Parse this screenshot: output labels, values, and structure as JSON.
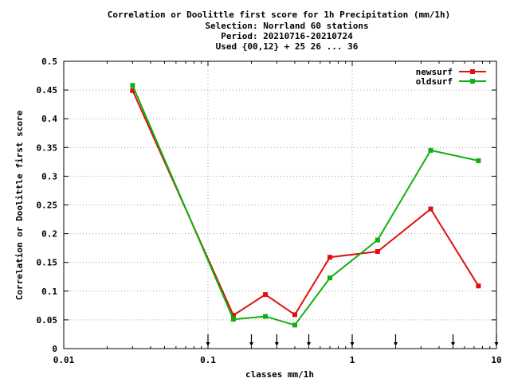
{
  "chart_data": {
    "type": "line",
    "title_lines": [
      "Correlation or Doolittle first score  for 1h Precipitation (mm/1h)",
      "Selection: Norrland     60 stations",
      "Period: 20210716-20210724",
      "Used {00,12} + 25 26 ... 36"
    ],
    "xlabel": "classes mm/1h",
    "ylabel": "Correlation or Doolittle first score",
    "x_scale": "log",
    "xlim": [
      0.01,
      10
    ],
    "ylim": [
      0,
      0.5
    ],
    "x_ticks": [
      0.01,
      0.1,
      1,
      10
    ],
    "x_tick_labels": [
      "0.01",
      "0.1",
      "1",
      "10"
    ],
    "y_ticks": [
      0,
      0.05,
      0.1,
      0.15,
      0.2,
      0.25,
      0.3,
      0.35,
      0.4,
      0.45,
      0.5
    ],
    "y_tick_labels": [
      "0",
      "0.05",
      "0.1",
      "0.15",
      "0.2",
      "0.25",
      "0.3",
      "0.35",
      "0.4",
      "0.45",
      "0.5"
    ],
    "grid": true,
    "legend_position": "top-right",
    "class_markers": [
      0.1,
      0.2,
      0.3,
      0.5,
      1,
      2,
      5,
      10
    ],
    "series": [
      {
        "name": "newsurf",
        "color": "#e01010",
        "x": [
          0.03,
          0.15,
          0.25,
          0.4,
          0.7,
          1.5,
          3.5,
          7.5
        ],
        "y": [
          0.449,
          0.058,
          0.094,
          0.059,
          0.159,
          0.169,
          0.243,
          0.109
        ]
      },
      {
        "name": "oldsurf",
        "color": "#10b010",
        "x": [
          0.03,
          0.15,
          0.25,
          0.4,
          0.7,
          1.5,
          3.5,
          7.5
        ],
        "y": [
          0.458,
          0.051,
          0.056,
          0.041,
          0.123,
          0.189,
          0.345,
          0.327
        ]
      }
    ]
  }
}
